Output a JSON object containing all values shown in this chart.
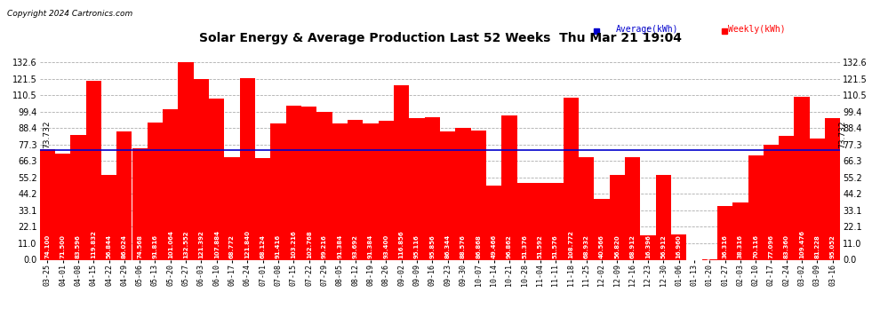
{
  "title": "Solar Energy & Average Production Last 52 Weeks  Thu Mar 21 19:04",
  "copyright": "Copyright 2024 Cartronics.com",
  "average_value": 73.732,
  "bar_color": "#FF0000",
  "average_line_color": "#0000CD",
  "average_text_color": "#000000",
  "legend_avg_color": "#0000CD",
  "legend_weekly_color": "#FF0000",
  "background_color": "#FFFFFF",
  "grid_color": "#999999",
  "ylim": [
    0.0,
    143.0
  ],
  "yticks": [
    0.0,
    11.0,
    22.1,
    33.1,
    44.2,
    55.2,
    66.3,
    77.3,
    88.4,
    99.4,
    110.5,
    121.5,
    132.6
  ],
  "categories": [
    "03-25",
    "04-01",
    "04-08",
    "04-15",
    "04-22",
    "04-29",
    "05-06",
    "05-13",
    "05-20",
    "05-27",
    "06-03",
    "06-10",
    "06-17",
    "06-24",
    "07-01",
    "07-08",
    "07-15",
    "07-22",
    "07-29",
    "08-05",
    "08-12",
    "08-19",
    "08-26",
    "09-02",
    "09-09",
    "09-16",
    "09-23",
    "09-30",
    "10-07",
    "10-14",
    "10-21",
    "10-28",
    "11-04",
    "11-11",
    "11-18",
    "11-25",
    "12-02",
    "12-09",
    "12-16",
    "12-23",
    "12-30",
    "01-06",
    "01-13",
    "01-20",
    "01-27",
    "02-03",
    "02-10",
    "02-17",
    "02-24",
    "03-02",
    "03-09",
    "03-16"
  ],
  "values": [
    74.1,
    71.5,
    83.596,
    119.832,
    56.844,
    86.024,
    74.568,
    91.816,
    101.064,
    132.552,
    121.392,
    107.884,
    68.772,
    121.84,
    68.124,
    91.416,
    103.216,
    102.768,
    99.216,
    91.384,
    93.692,
    91.384,
    93.4,
    116.856,
    95.116,
    95.856,
    86.344,
    88.576,
    86.868,
    49.466,
    96.862,
    51.376,
    51.592,
    51.576,
    108.772,
    68.932,
    40.566,
    56.82,
    68.912,
    16.396,
    56.912,
    16.96,
    0.0,
    0.148,
    36.316,
    38.316,
    70.116,
    77.096,
    83.36,
    109.476,
    81.228,
    95.052
  ]
}
